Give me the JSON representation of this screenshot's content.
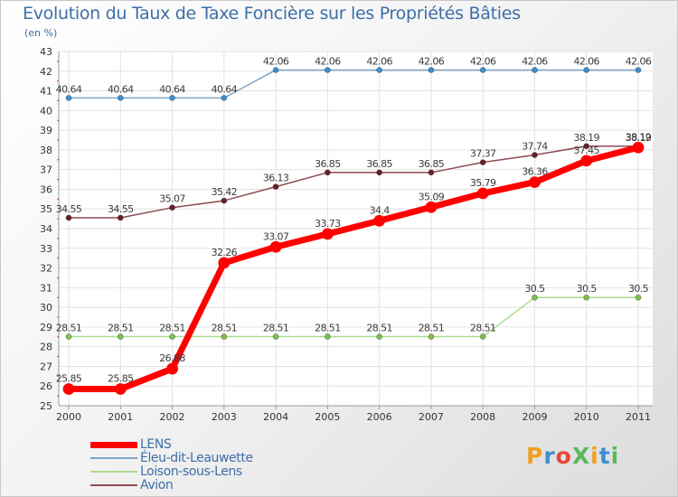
{
  "title": "Evolution du Taux de Taxe Foncière sur les Propriétés Bâties",
  "unit": "(en %)",
  "brand": {
    "text": "ProXiti",
    "letter_colors": [
      "#f0a020",
      "#3d8fd1",
      "#e8463a",
      "#5cb85c",
      "#f0a020",
      "#3d8fd1",
      "#5cb85c"
    ]
  },
  "chart_data": {
    "type": "line",
    "title": "Evolution du Taux de Taxe Foncière sur les Propriétés Bâties",
    "ylabel": "(en %)",
    "xlabel": "",
    "ylim": [
      25,
      43
    ],
    "y_ticks": [
      25,
      26,
      27,
      28,
      29,
      30,
      31,
      32,
      33,
      34,
      35,
      36,
      37,
      38,
      39,
      40,
      41,
      42,
      43
    ],
    "categories": [
      "2000",
      "2001",
      "2002",
      "2003",
      "2004",
      "2005",
      "2006",
      "2007",
      "2008",
      "2009",
      "2010",
      "2011"
    ],
    "grid": true,
    "legend_position": "bottom-left",
    "series": [
      {
        "name": "Éleu-dit-Leauwette",
        "color": "#7fa6c8",
        "marker_color": "#3d8fd1",
        "line_width": 1.5,
        "marker_radius": 3,
        "values": [
          40.64,
          40.64,
          40.64,
          40.64,
          42.06,
          42.06,
          42.06,
          42.06,
          42.06,
          42.06,
          42.06,
          42.06
        ],
        "labels": [
          "40.64",
          "40.64",
          "40.64",
          "40.64",
          "42.06",
          "42.06",
          "42.06",
          "42.06",
          "42.06",
          "42.06",
          "42.06",
          "42.06"
        ]
      },
      {
        "name": "Loison-sous-Lens",
        "color": "#a9dc8e",
        "marker_color": "#7cc24e",
        "line_width": 1.5,
        "marker_radius": 3,
        "values": [
          28.51,
          28.51,
          28.51,
          28.51,
          28.51,
          28.51,
          28.51,
          28.51,
          28.51,
          30.5,
          30.5,
          30.5
        ],
        "labels": [
          "28.51",
          "28.51",
          "28.51",
          "28.51",
          "28.51",
          "28.51",
          "28.51",
          "28.51",
          "28.51",
          "30.5",
          "30.5",
          "30.5"
        ]
      },
      {
        "name": "Avion",
        "color": "#8e4b52",
        "marker_color": "#6a1f2a",
        "line_width": 1.5,
        "marker_radius": 3,
        "values": [
          34.55,
          34.55,
          35.07,
          35.42,
          36.13,
          36.85,
          36.85,
          36.85,
          37.37,
          37.74,
          38.19,
          38.19
        ],
        "labels": [
          "34.55",
          "34.55",
          "35.07",
          "35.42",
          "36.13",
          "36.85",
          "36.85",
          "36.85",
          "37.37",
          "37.74",
          "38.19",
          "38.19"
        ]
      },
      {
        "name": "LENS",
        "color": "#ff0000",
        "marker_color": "#ff0000",
        "line_width": 7,
        "marker_radius": 6,
        "values": [
          25.85,
          25.85,
          26.88,
          32.26,
          33.07,
          33.73,
          34.4,
          35.09,
          35.79,
          36.36,
          37.45,
          38.12
        ],
        "labels": [
          "25.85",
          "25.85",
          "26.88",
          "32.26",
          "33.07",
          "33.73",
          "34.4",
          "35.09",
          "35.79",
          "36.36",
          "37.45",
          "38.12"
        ]
      }
    ],
    "legend": [
      "LENS",
      "Éleu-dit-Leauwette",
      "Loison-sous-Lens",
      "Avion"
    ]
  }
}
